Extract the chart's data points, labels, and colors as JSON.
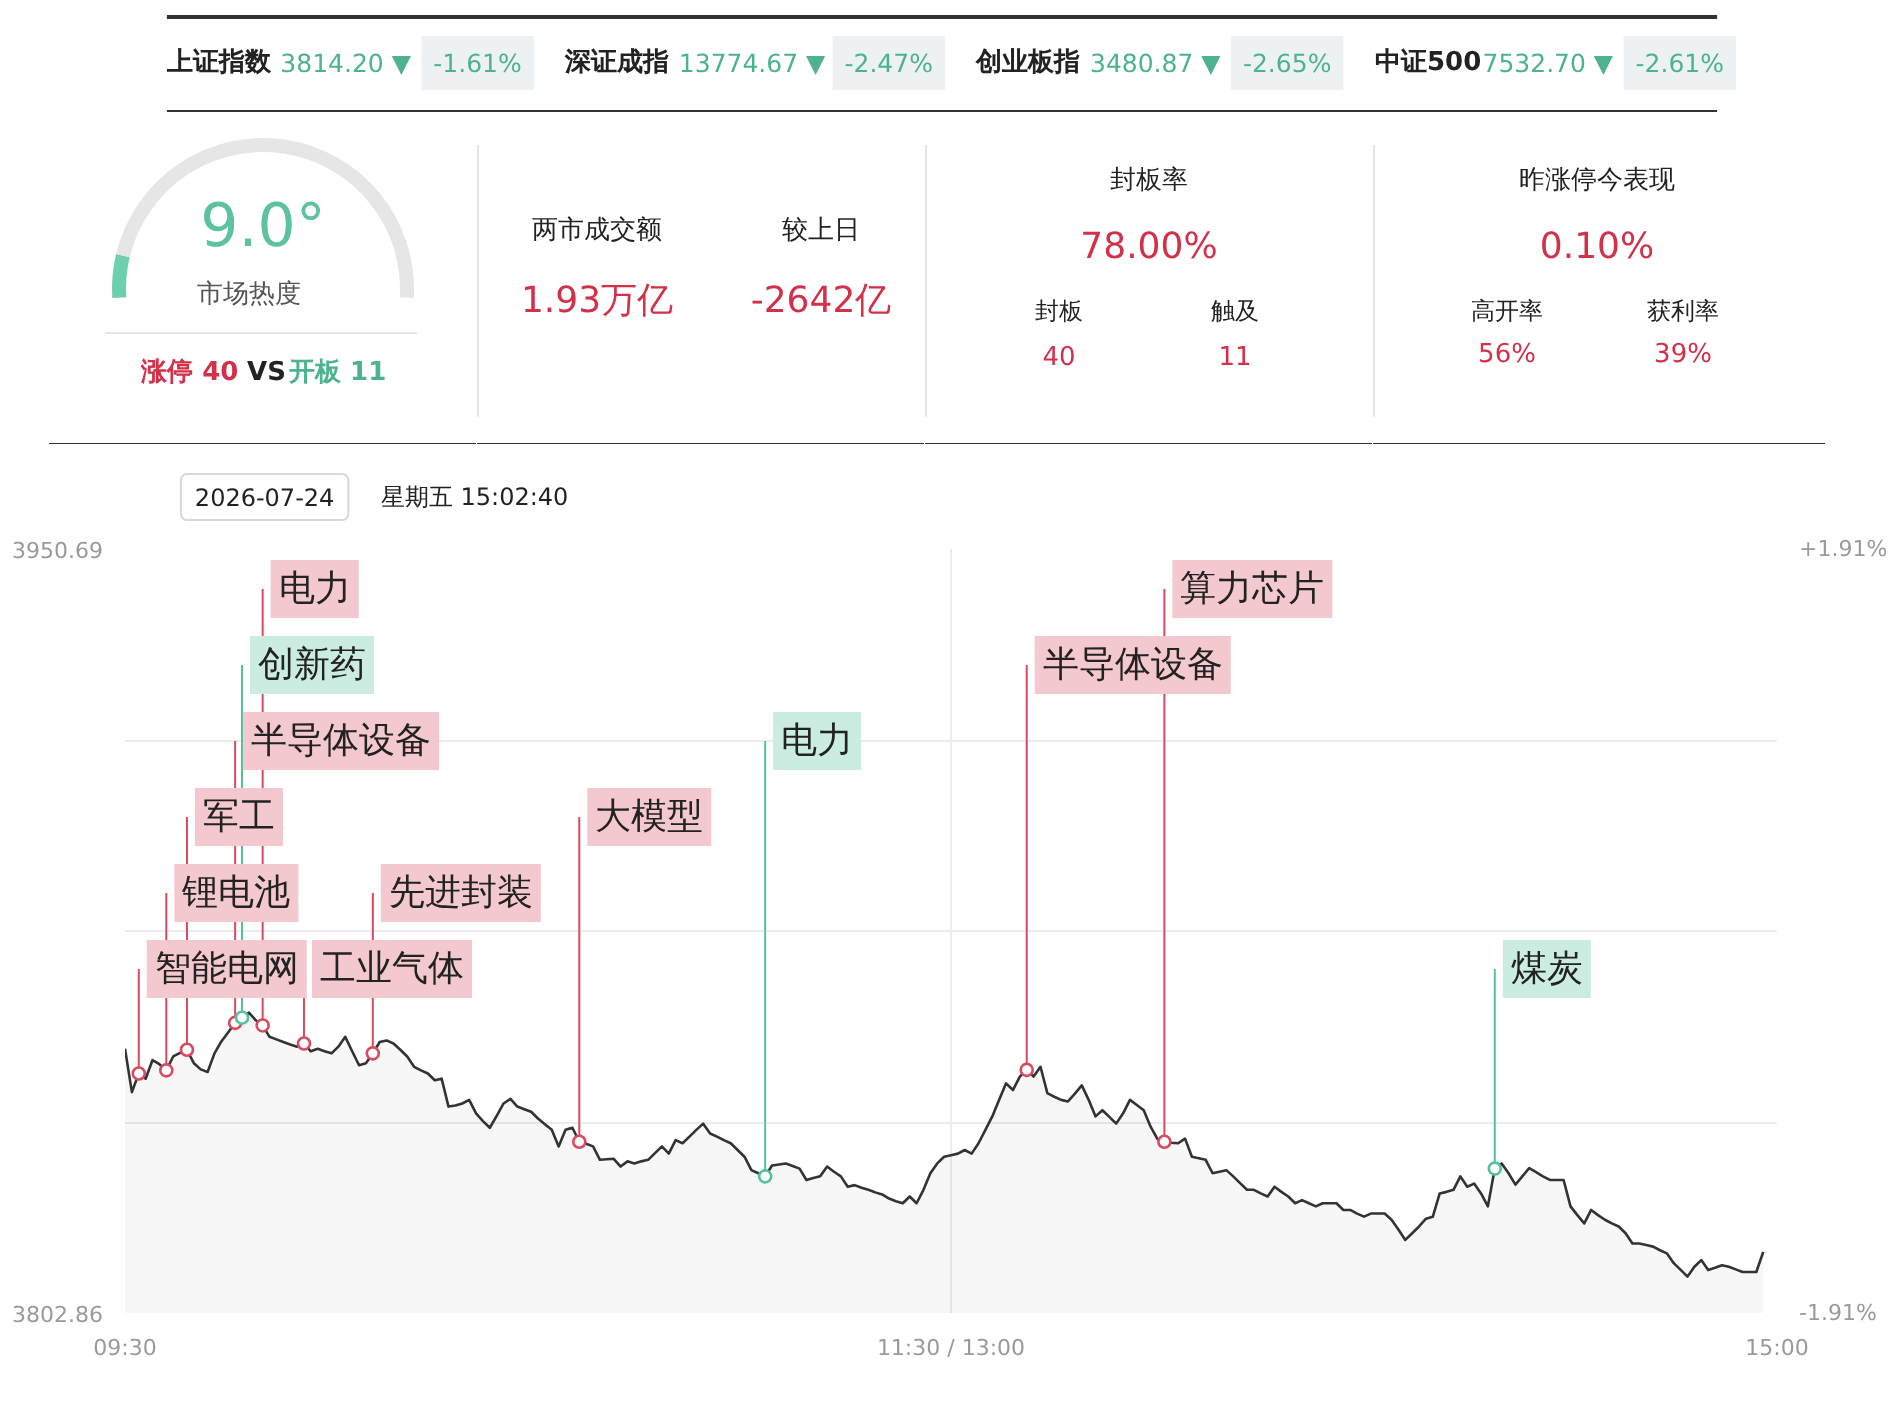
{
  "chart_data": [
    {
      "type": "other",
      "annotations": [
        "上证指数",
        "3814.20 ▼",
        "-1.61%",
        "深证成指",
        "13774.67 ▼",
        "-2.47%",
        "创业板指",
        "3480.87 ▼",
        "-2.65%",
        "中证500",
        "7532.70 ▼",
        "-2.61%"
      ]
    },
    {
      "type": "donut",
      "categories": [
        null,
        null
      ],
      "values": [
        9.0,
        91.0
      ],
      "colors": [
        "#6ccfae",
        "#e6e6e6"
      ],
      "annotations": [
        "9.0°",
        "市场热度",
        "涨停 40",
        "VS",
        "开板 11"
      ]
    },
    {
      "type": "other",
      "annotations": [
        "两市成交额",
        "1.93万亿",
        "较上日",
        "-2642亿"
      ]
    },
    {
      "type": "other",
      "annotations": [
        "封板率",
        "78.00%",
        "封板",
        "40",
        "触及",
        "11"
      ]
    },
    {
      "type": "other",
      "annotations": [
        "昨涨停今表现",
        "0.10%",
        "高开率",
        "56%",
        "获利率",
        "39%"
      ]
    },
    {
      "type": "area",
      "categories": [
        "09:30",
        null,
        null,
        null,
        null,
        null,
        null,
        null,
        null,
        null,
        null,
        null,
        null,
        null,
        null,
        null,
        null,
        null,
        null,
        null,
        null,
        null,
        null,
        null,
        null,
        null,
        null,
        null,
        null,
        null,
        null,
        null,
        null,
        null,
        null,
        null,
        null,
        null,
        null,
        null,
        null,
        null,
        null,
        null,
        null,
        null,
        null,
        null,
        null,
        null,
        null,
        null,
        null,
        null,
        null,
        null,
        null,
        null,
        null,
        null,
        null,
        null,
        null,
        null,
        null,
        null,
        null,
        null,
        null,
        null,
        null,
        null,
        null,
        null,
        null,
        null,
        null,
        null,
        null,
        null,
        null,
        null,
        null,
        null,
        null,
        null,
        null,
        null,
        null,
        null,
        null,
        null,
        null,
        null,
        null,
        null,
        null,
        null,
        null,
        null,
        null,
        null,
        null,
        null,
        null,
        null,
        null,
        null,
        null,
        null,
        null,
        null,
        null,
        null,
        null,
        null,
        null,
        null,
        null,
        null,
        "11:30 / 13:00",
        null,
        null,
        null,
        null,
        null,
        null,
        null,
        null,
        null,
        null,
        null,
        null,
        null,
        null,
        null,
        null,
        null,
        null,
        null,
        null,
        null,
        null,
        null,
        null,
        null,
        null,
        null,
        null,
        null,
        null,
        null,
        null,
        null,
        null,
        null,
        null,
        null,
        null,
        null,
        null,
        null,
        null,
        null,
        null,
        null,
        null,
        null,
        null,
        null,
        null,
        null,
        null,
        null,
        null,
        null,
        null,
        null,
        null,
        null,
        null,
        null,
        null,
        null,
        null,
        null,
        null,
        null,
        null,
        null,
        null,
        null,
        null,
        null,
        null,
        null,
        null,
        null,
        null,
        null,
        null,
        null,
        null,
        null,
        null,
        null,
        null,
        null,
        null,
        null,
        null,
        null,
        null,
        null,
        null,
        null,
        null,
        null,
        null,
        null,
        null,
        null,
        null,
        null,
        null,
        null,
        null,
        null,
        null,
        null,
        null,
        null,
        null,
        null,
        null,
        null,
        null,
        null,
        null,
        null,
        "15:00"
      ],
      "ylim": [
        3802.86,
        3950.69
      ],
      "yticks": [
        3802.86,
        {
          "value": 3839.8175,
          "label": null
        },
        {
          "value": 3876.775,
          "label": null
        },
        {
          "value": 3913.7325,
          "label": null
        },
        3950.69
      ],
      "y2lim": [
        -1.91,
        1.91
      ],
      "y2ticks": [
        {
          "value": 1.91,
          "label": "+1.91%"
        },
        {
          "value": -1.91,
          "label": "-1.91%"
        }
      ],
      "grid": true,
      "series": [
        {
          "color": "#333333",
          "values": [
            3854.0,
            3845.6,
            3849.2,
            3848.2,
            3851.8,
            3851.0,
            3849.8,
            3852.5,
            3853.2,
            3853.8,
            3851.2,
            3850.0,
            3849.5,
            3853.1,
            3855.4,
            3857.2,
            3859.0,
            3860.0,
            3861.0,
            3859.5,
            3858.5,
            3856.3,
            3855.8,
            3855.3,
            3854.8,
            3854.4,
            3855.0,
            3853.5,
            3854.0,
            3853.5,
            3853.1,
            3854.4,
            3856.3,
            3853.5,
            3850.8,
            3851.2,
            3853.1,
            3855.3,
            3855.6,
            3855.0,
            3853.8,
            3852.5,
            3850.5,
            3849.8,
            3849.2,
            3847.9,
            3848.2,
            3842.8,
            3843.0,
            3843.4,
            3844.1,
            3841.5,
            3840.0,
            3838.7,
            3841.0,
            3843.4,
            3844.3,
            3842.8,
            3842.3,
            3841.8,
            3840.5,
            3839.4,
            3838.3,
            3835.1,
            3838.3,
            3838.7,
            3836.0,
            3835.6,
            3835.1,
            3832.5,
            3832.6,
            3832.7,
            3831.2,
            3832.2,
            3831.8,
            3832.2,
            3832.5,
            3833.8,
            3835.1,
            3833.7,
            3836.3,
            3835.7,
            3837.0,
            3838.3,
            3839.5,
            3837.6,
            3837.0,
            3836.3,
            3835.7,
            3834.4,
            3833.1,
            3830.5,
            3829.9,
            3829.3,
            3831.4,
            3831.6,
            3831.8,
            3831.3,
            3830.8,
            3828.6,
            3829.0,
            3829.3,
            3831.2,
            3830.2,
            3829.3,
            3827.3,
            3827.6,
            3827.1,
            3826.7,
            3826.2,
            3825.8,
            3825.0,
            3824.5,
            3824.1,
            3825.4,
            3824.1,
            3826.7,
            3829.9,
            3831.8,
            3833.1,
            3833.4,
            3833.7,
            3834.4,
            3833.7,
            3835.7,
            3838.3,
            3840.9,
            3844.1,
            3847.3,
            3846.0,
            3848.6,
            3849.9,
            3848.6,
            3850.5,
            3845.4,
            3844.7,
            3844.1,
            3843.8,
            3845.3,
            3846.9,
            3844.1,
            3840.9,
            3842.1,
            3840.8,
            3839.5,
            3841.5,
            3844.1,
            3843.1,
            3842.1,
            3838.9,
            3836.5,
            3836.0,
            3835.8,
            3835.7,
            3836.6,
            3833.1,
            3832.8,
            3832.5,
            3829.9,
            3830.2,
            3830.5,
            3829.3,
            3828.0,
            3826.7,
            3826.7,
            3826.0,
            3825.4,
            3827.3,
            3826.3,
            3825.4,
            3824.1,
            3824.7,
            3824.1,
            3823.5,
            3824.1,
            3824.1,
            3824.1,
            3822.8,
            3822.8,
            3822.1,
            3821.5,
            3822.1,
            3822.1,
            3822.1,
            3820.9,
            3819.0,
            3817.0,
            3818.3,
            3819.6,
            3821.1,
            3821.5,
            3826.0,
            3826.3,
            3826.7,
            3829.3,
            3827.3,
            3827.9,
            3826.0,
            3823.5,
            3830.8,
            3831.8,
            3829.9,
            3827.7,
            3829.3,
            3830.9,
            3830.1,
            3829.3,
            3828.6,
            3828.6,
            3828.6,
            3823.5,
            3821.8,
            3820.2,
            3822.8,
            3821.8,
            3820.9,
            3820.2,
            3819.6,
            3818.3,
            3816.3,
            3816.3,
            3816.0,
            3815.7,
            3815.0,
            3814.4,
            3812.5,
            3811.2,
            3809.9,
            3811.8,
            3813.1,
            3811.2,
            3811.6,
            3812.1,
            3811.8,
            3811.3,
            3810.8,
            3810.8,
            3810.8,
            3814.7,
            null,
            null
          ]
        },
        {
          "type": "scatter",
          "marker": "circle",
          "color": "#d94a5c",
          "values": [
            null,
            null,
            3849.2,
            null,
            null,
            null,
            3849.8,
            null,
            null,
            3853.8,
            null,
            null,
            null,
            null,
            null,
            null,
            3859.0,
            null,
            null,
            null,
            3858.5,
            null,
            null,
            null,
            null,
            null,
            3855.0,
            null,
            null,
            null,
            null,
            null,
            null,
            null,
            null,
            null,
            3853.1,
            null,
            null,
            null,
            null,
            null,
            null,
            null,
            null,
            null,
            null,
            null,
            null,
            null,
            null,
            null,
            null,
            null,
            null,
            null,
            null,
            null,
            null,
            null,
            null,
            null,
            null,
            null,
            null,
            null,
            3836.0,
            null,
            null,
            null,
            null,
            null,
            null,
            null,
            null,
            null,
            null,
            null,
            null,
            null,
            null,
            null,
            null,
            null,
            null,
            null,
            null,
            null,
            null,
            null,
            null,
            null,
            null,
            null,
            null,
            null,
            null,
            null,
            null,
            null,
            null,
            null,
            null,
            null,
            null,
            null,
            null,
            null,
            null,
            null,
            null,
            null,
            null,
            null,
            null,
            null,
            null,
            null,
            null,
            null,
            null,
            null,
            null,
            null,
            null,
            null,
            null,
            null,
            null,
            null,
            null,
            3849.9,
            null,
            null,
            null,
            null,
            null,
            null,
            null,
            null,
            null,
            null,
            null,
            null,
            null,
            null,
            null,
            null,
            null,
            null,
            null,
            3836.0,
            null,
            null,
            null,
            null,
            null,
            null,
            null,
            null,
            null,
            null,
            null,
            null,
            null,
            null,
            null,
            null,
            null,
            null,
            null,
            null,
            null,
            null,
            null,
            null,
            null,
            null,
            null,
            null,
            null,
            null,
            null,
            null,
            null,
            null,
            null,
            null,
            null,
            null,
            null,
            null,
            null,
            null,
            null,
            null,
            null,
            null,
            null,
            null,
            null,
            null,
            null,
            null,
            null,
            null,
            null,
            null,
            null,
            null,
            null,
            null,
            null,
            null,
            null,
            null,
            null,
            null,
            null,
            null,
            null,
            null,
            null,
            null,
            null,
            null,
            null,
            null,
            null,
            null,
            null,
            null,
            null,
            null,
            null,
            null,
            null,
            null,
            null,
            null,
            null
          ],
          "value_labels": [
            null,
            null,
            "智能电网",
            null,
            null,
            null,
            "锂电池",
            null,
            null,
            "军工",
            null,
            null,
            null,
            null,
            null,
            null,
            "半导体设备",
            null,
            null,
            null,
            "电力",
            null,
            null,
            null,
            null,
            null,
            "工业气体",
            null,
            null,
            null,
            null,
            null,
            null,
            null,
            null,
            null,
            "先进封装",
            null,
            null,
            null,
            null,
            null,
            null,
            null,
            null,
            null,
            null,
            null,
            null,
            null,
            null,
            null,
            null,
            null,
            null,
            null,
            null,
            null,
            null,
            null,
            null,
            null,
            null,
            null,
            null,
            null,
            "大模型",
            null,
            null,
            null,
            null,
            null,
            null,
            null,
            null,
            null,
            null,
            null,
            null,
            null,
            null,
            null,
            null,
            null,
            null,
            null,
            null,
            null,
            null,
            null,
            null,
            null,
            null,
            null,
            null,
            null,
            null,
            null,
            null,
            null,
            null,
            null,
            null,
            null,
            null,
            null,
            null,
            null,
            null,
            null,
            null,
            null,
            null,
            null,
            null,
            null,
            null,
            null,
            null,
            null,
            null,
            null,
            null,
            null,
            null,
            null,
            null,
            null,
            null,
            null,
            null,
            "半导体设备",
            null,
            null,
            null,
            null,
            null,
            null,
            null,
            null,
            null,
            null,
            null,
            null,
            null,
            null,
            null,
            null,
            null,
            null,
            null,
            "算力芯片",
            null,
            null,
            null,
            null,
            null,
            null,
            null,
            null,
            null,
            null,
            null,
            null,
            null,
            null,
            null,
            null,
            null,
            null,
            null,
            null,
            null,
            null,
            null,
            null,
            null,
            null,
            null,
            null,
            null,
            null,
            null,
            null,
            null,
            null,
            null,
            null,
            null,
            null,
            null,
            null,
            null,
            null,
            null,
            null,
            null,
            null,
            null,
            null,
            null,
            null,
            null,
            null,
            null,
            null,
            null,
            null,
            null,
            null,
            null,
            null,
            null,
            null,
            null,
            null,
            null,
            null,
            null,
            null,
            null,
            null,
            null,
            null,
            null,
            null,
            null,
            null,
            null,
            null,
            null,
            null,
            null,
            null,
            null,
            null,
            null,
            null,
            null,
            null,
            null
          ]
        },
        {
          "type": "scatter",
          "marker": "circle",
          "color": "#52c29c",
          "values": [
            null,
            null,
            null,
            null,
            null,
            null,
            null,
            null,
            null,
            null,
            null,
            null,
            null,
            null,
            null,
            null,
            null,
            3860.0,
            null,
            null,
            null,
            null,
            null,
            null,
            null,
            null,
            null,
            null,
            null,
            null,
            null,
            null,
            null,
            null,
            null,
            null,
            null,
            null,
            null,
            null,
            null,
            null,
            null,
            null,
            null,
            null,
            null,
            null,
            null,
            null,
            null,
            null,
            null,
            null,
            null,
            null,
            null,
            null,
            null,
            null,
            null,
            null,
            null,
            null,
            null,
            null,
            null,
            null,
            null,
            null,
            null,
            null,
            null,
            null,
            null,
            null,
            null,
            null,
            null,
            null,
            null,
            null,
            null,
            null,
            null,
            null,
            null,
            null,
            null,
            null,
            null,
            null,
            null,
            3829.3,
            null,
            null,
            null,
            null,
            null,
            null,
            null,
            null,
            null,
            null,
            null,
            null,
            null,
            null,
            null,
            null,
            null,
            null,
            null,
            null,
            null,
            null,
            null,
            null,
            null,
            null,
            null,
            null,
            null,
            null,
            null,
            null,
            null,
            null,
            null,
            null,
            null,
            null,
            null,
            null,
            null,
            null,
            null,
            null,
            null,
            null,
            null,
            null,
            null,
            null,
            null,
            null,
            null,
            null,
            null,
            null,
            null,
            null,
            null,
            null,
            null,
            null,
            null,
            null,
            null,
            null,
            null,
            null,
            null,
            null,
            null,
            null,
            null,
            null,
            null,
            null,
            null,
            null,
            null,
            null,
            null,
            null,
            null,
            null,
            null,
            null,
            null,
            null,
            null,
            null,
            null,
            null,
            null,
            null,
            null,
            null,
            null,
            null,
            null,
            null,
            null,
            null,
            null,
            null,
            null,
            3830.8,
            null,
            null,
            null,
            null,
            null,
            null,
            null,
            null,
            null,
            null,
            null,
            null,
            null,
            null,
            null,
            null,
            null,
            null,
            null,
            null,
            null,
            null,
            null,
            null,
            null,
            null,
            null,
            null,
            null,
            null,
            null,
            null,
            null,
            null,
            null,
            null,
            null,
            null,
            null,
            null,
            null
          ],
          "value_labels": [
            null,
            null,
            null,
            null,
            null,
            null,
            null,
            null,
            null,
            null,
            null,
            null,
            null,
            null,
            null,
            null,
            null,
            "创新药",
            null,
            null,
            null,
            null,
            null,
            null,
            null,
            null,
            null,
            null,
            null,
            null,
            null,
            null,
            null,
            null,
            null,
            null,
            null,
            null,
            null,
            null,
            null,
            null,
            null,
            null,
            null,
            null,
            null,
            null,
            null,
            null,
            null,
            null,
            null,
            null,
            null,
            null,
            null,
            null,
            null,
            null,
            null,
            null,
            null,
            null,
            null,
            null,
            null,
            null,
            null,
            null,
            null,
            null,
            null,
            null,
            null,
            null,
            null,
            null,
            null,
            null,
            null,
            null,
            null,
            null,
            null,
            null,
            null,
            null,
            null,
            null,
            null,
            null,
            null,
            "电力",
            null,
            null,
            null,
            null,
            null,
            null,
            null,
            null,
            null,
            null,
            null,
            null,
            null,
            null,
            null,
            null,
            null,
            null,
            null,
            null,
            null,
            null,
            null,
            null,
            null,
            null,
            null,
            null,
            null,
            null,
            null,
            null,
            null,
            null,
            null,
            null,
            null,
            null,
            null,
            null,
            null,
            null,
            null,
            null,
            null,
            null,
            null,
            null,
            null,
            null,
            null,
            null,
            null,
            null,
            null,
            null,
            null,
            null,
            null,
            null,
            null,
            null,
            null,
            null,
            null,
            null,
            null,
            null,
            null,
            null,
            null,
            null,
            null,
            null,
            null,
            null,
            null,
            null,
            null,
            null,
            null,
            null,
            null,
            null,
            null,
            null,
            null,
            null,
            null,
            null,
            null,
            null,
            null,
            null,
            null,
            null,
            null,
            null,
            null,
            null,
            null,
            null,
            null,
            null,
            null,
            "煤炭",
            null,
            null,
            null,
            null,
            null,
            null,
            null,
            null,
            null,
            null,
            null,
            null,
            null,
            null,
            null,
            null,
            null,
            null,
            null,
            null,
            null,
            null,
            null,
            null,
            null,
            null,
            null,
            null,
            null,
            null,
            null,
            null,
            null,
            null,
            null,
            null,
            null,
            null,
            null,
            null,
            null
          ]
        }
      ],
      "annotations": [
        "2026-07-24",
        "星期五 15:02:40"
      ]
    }
  ]
}
